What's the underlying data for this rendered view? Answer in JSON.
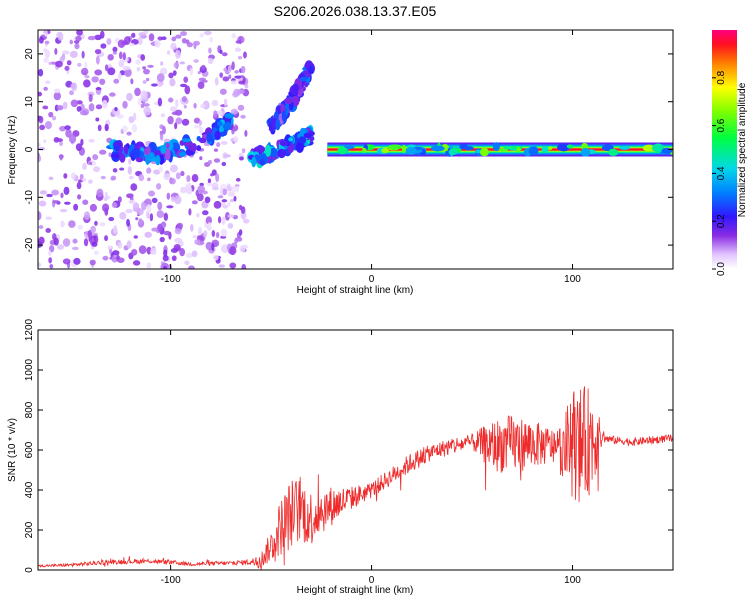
{
  "title": "S206.2026.038.13.37.E05",
  "chart_data": [
    {
      "type": "heatmap",
      "xlabel": "Height of straight line (km)",
      "ylabel": "Frequency (Hz)",
      "xlim": [
        -166,
        150
      ],
      "ylim": [
        -25,
        25
      ],
      "xticks": [
        -100,
        0,
        100
      ],
      "yticks": [
        -20,
        -10,
        0,
        10,
        20
      ],
      "grid": false,
      "colorbar": {
        "label": "Normalized spectral amplitude",
        "range": [
          0,
          1
        ],
        "ticks": [
          0.0,
          0.2,
          0.4,
          0.6,
          0.8
        ]
      },
      "features": [
        {
          "name": "scattered noise",
          "x_range": [
            -166,
            -62
          ],
          "freq_range": [
            -25,
            25
          ],
          "amplitude": 0.1
        },
        {
          "name": "drifting ridge",
          "x": [
            -130,
            -110,
            -95,
            -80,
            -70
          ],
          "freq": [
            0,
            -1,
            0,
            3,
            6
          ],
          "amplitude": 0.3
        },
        {
          "name": "rising branch",
          "x": [
            -50,
            -40,
            -30
          ],
          "freq": [
            5,
            10,
            17
          ],
          "amplitude": 0.25
        },
        {
          "name": "falling branch",
          "x": [
            -60,
            -45,
            -30
          ],
          "freq": [
            -2,
            0,
            3
          ],
          "amplitude": 0.35
        },
        {
          "name": "constant tone",
          "x_range": [
            -22,
            150
          ],
          "freq": 0,
          "amplitude": 1.0
        }
      ]
    },
    {
      "type": "line",
      "xlabel": "Height of straight line (km)",
      "ylabel": "SNR (10 * v/v)",
      "xlim": [
        -166,
        150
      ],
      "ylim": [
        0,
        1200
      ],
      "xticks": [
        -100,
        0,
        100
      ],
      "yticks": [
        0,
        200,
        400,
        600,
        800,
        1000,
        1200
      ],
      "grid": false,
      "series": [
        {
          "name": "SNR",
          "color": "#ee2a2a",
          "x": [
            -166,
            -150,
            -130,
            -110,
            -90,
            -70,
            -60,
            -55,
            -50,
            -45,
            -40,
            -35,
            -30,
            -25,
            -20,
            -15,
            -10,
            -5,
            0,
            10,
            20,
            30,
            40,
            50,
            60,
            70,
            80,
            90,
            95,
            100,
            105,
            110,
            115,
            120,
            130,
            140,
            150
          ],
          "values": [
            20,
            25,
            40,
            45,
            30,
            35,
            40,
            50,
            120,
            220,
            280,
            300,
            260,
            300,
            320,
            340,
            360,
            380,
            400,
            470,
            540,
            590,
            620,
            640,
            620,
            630,
            630,
            620,
            600,
            640,
            620,
            660,
            660,
            650,
            640,
            650,
            660
          ],
          "noise": [
            5,
            8,
            12,
            12,
            10,
            10,
            15,
            40,
            80,
            150,
            180,
            170,
            140,
            120,
            100,
            80,
            60,
            50,
            40,
            45,
            50,
            40,
            45,
            40,
            130,
            150,
            120,
            90,
            140,
            280,
            300,
            260,
            25,
            20,
            20,
            20,
            20
          ]
        }
      ]
    }
  ]
}
